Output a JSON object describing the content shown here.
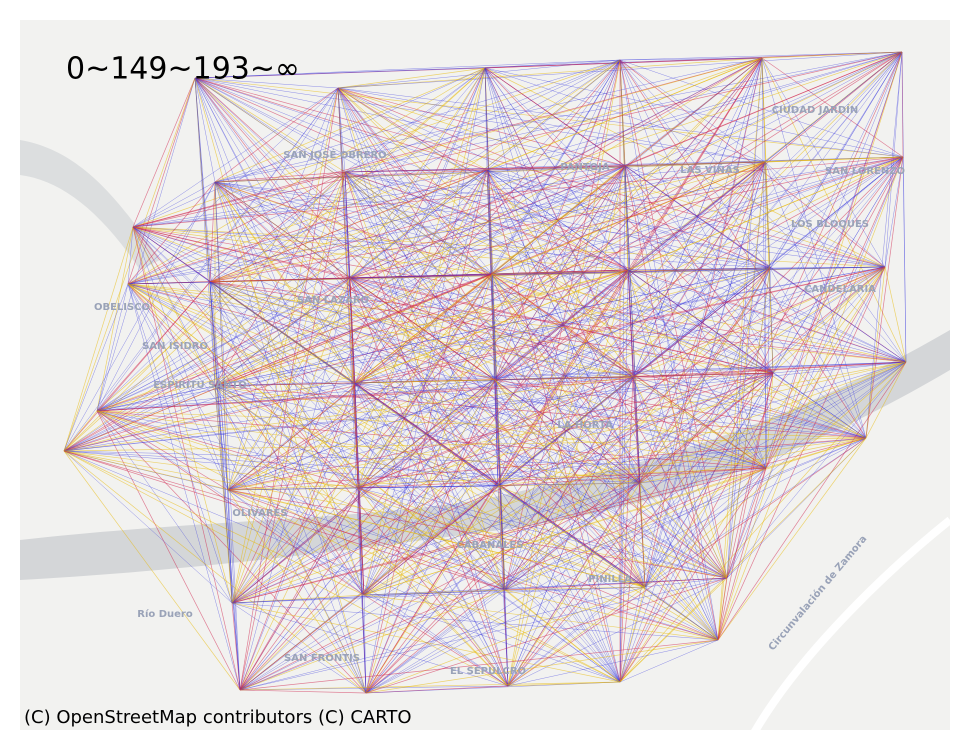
{
  "legend": "0~149~193~∞",
  "attribution": "(C) OpenStreetMap contributors (C) CARTO",
  "places": [
    "CIUDAD JARDÍN",
    "SAN JOSÉ OBRERO",
    "PANTOJA",
    "LAS VIÑAS",
    "SAN LORENZO",
    "LOS BLOQUES",
    "CANDELARIA",
    "OBELISCO",
    "SAN LÁZARO",
    "SAN ISIDRO",
    "ESPÍRITU SANTO",
    "LA HORTA",
    "OLIVARES",
    "CABAÑALES",
    "PINILLA",
    "SAN FRONTIS",
    "EL SEPULCRO",
    "Río Duero",
    "Circunvalación de Zamora"
  ]
}
